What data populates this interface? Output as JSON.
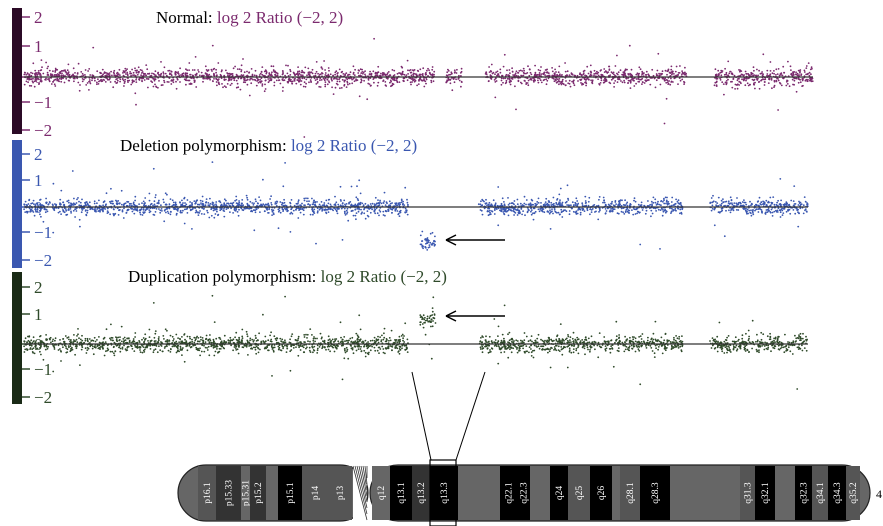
{
  "chart_data": {
    "type": "scatter",
    "chromosome": {
      "number": "4",
      "p_bands": [
        "p16.1",
        "p15.33",
        "p15.31",
        "p15.2",
        "p15.1",
        "p14",
        "p13"
      ],
      "q_bands": [
        "q12",
        "q13.1",
        "q13.2",
        "q13.3",
        "q22.1",
        "q22.3",
        "q24",
        "q25",
        "q26",
        "q28.1",
        "q28.3",
        "q31.3",
        "q32.1",
        "q32.3",
        "q34.1",
        "q34.3",
        "q35.2"
      ]
    },
    "panels": [
      {
        "id": "normal",
        "title_prefix": "Normal: ",
        "title_suffix": "log 2 Ratio (−2, 2)",
        "color": "#7b2a6e",
        "bar_color": "#2b0a26",
        "ticks": [
          "2",
          "1",
          "0",
          "−1",
          "−2"
        ],
        "tick_values": [
          2,
          1,
          0,
          -1,
          -2
        ],
        "ylim": [
          -2,
          2
        ],
        "segments": [
          {
            "x": [
              0.0,
              0.52
            ],
            "mean": 0.0
          },
          {
            "x": [
              0.535,
              0.555
            ],
            "mean": 0.0
          },
          {
            "x": [
              0.585,
              0.84
            ],
            "mean": 0.0
          },
          {
            "x": [
              0.875,
              1.0
            ],
            "mean": 0.0
          }
        ]
      },
      {
        "id": "deletion",
        "title_prefix": "Deletion polymorphism: ",
        "title_suffix": "log 2 Ratio (−2, 2)",
        "color": "#3a57b0",
        "bar_color": "#3a57b0",
        "ticks": [
          "2",
          "1",
          "0",
          "−1",
          "−2"
        ],
        "tick_values": [
          2,
          1,
          0,
          -1,
          -2
        ],
        "ylim": [
          -2,
          2
        ],
        "segments": [
          {
            "x": [
              0.0,
              0.49
            ],
            "mean": 0.0
          },
          {
            "x": [
              0.505,
              0.525
            ],
            "mean": -1.3
          },
          {
            "x": [
              0.58,
              0.84
            ],
            "mean": 0.0
          },
          {
            "x": [
              0.875,
              1.0
            ],
            "mean": 0.0
          }
        ]
      },
      {
        "id": "duplication",
        "title_prefix": "Duplication polymorphism: ",
        "title_suffix": "log 2 Ratio (−2, 2)",
        "color": "#2f4a2a",
        "bar_color": "#1a2a16",
        "ticks": [
          "2",
          "1",
          "0",
          "−1",
          "−2"
        ],
        "tick_values": [
          2,
          1,
          0,
          -1,
          -2
        ],
        "ylim": [
          -2,
          2
        ],
        "segments": [
          {
            "x": [
              0.0,
              0.49
            ],
            "mean": 0.0
          },
          {
            "x": [
              0.505,
              0.525
            ],
            "mean": 0.85
          },
          {
            "x": [
              0.58,
              0.84
            ],
            "mean": 0.0
          },
          {
            "x": [
              0.875,
              1.0
            ],
            "mean": 0.0
          }
        ]
      }
    ]
  }
}
